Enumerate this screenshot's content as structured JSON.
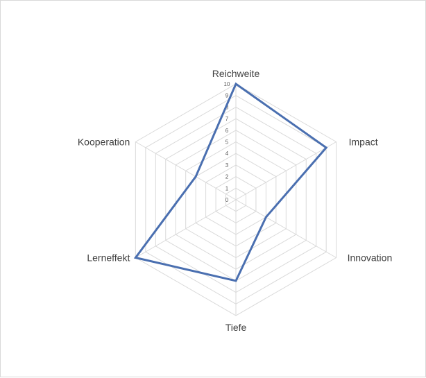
{
  "chart_data": {
    "type": "radar",
    "categories": [
      "Reichweite",
      "Impact",
      "Innovation",
      "Tiefe",
      "Lerneffekt",
      "Kooperation"
    ],
    "series": [
      {
        "values": [
          10,
          9,
          3,
          7,
          10,
          4
        ]
      }
    ],
    "rlim": [
      0,
      10
    ],
    "ticks": [
      "0",
      "1",
      "2",
      "3",
      "4",
      "5",
      "6",
      "7",
      "8",
      "9",
      "10"
    ],
    "grid": true,
    "legend": "none",
    "colors": {
      "series": "#4a6fb0",
      "grid": "#d9d9d9"
    }
  }
}
